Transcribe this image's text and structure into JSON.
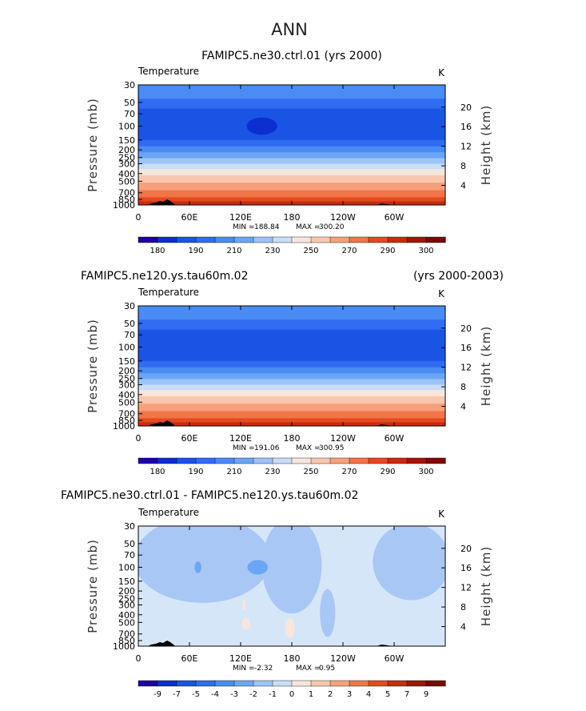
{
  "page_title": "ANN",
  "chart_data": [
    {
      "type": "heatmap",
      "title": "FAMIPC5.ne30.ctrl.01 (yrs 2000)",
      "variable": "Temperature",
      "units": "K",
      "xlabel": "",
      "ylabel": "Pressure (mb)",
      "y2label": "Height (km)",
      "xticks": [
        "0",
        "60E",
        "120E",
        "180",
        "120W",
        "60W"
      ],
      "xlim": [
        0,
        360
      ],
      "yticks": [
        "30",
        "50",
        "70",
        "100",
        "150",
        "200",
        "250",
        "300",
        "400",
        "500",
        "700",
        "850",
        "1000"
      ],
      "ylim_mb": [
        1000,
        30
      ],
      "height_ticks_km": [
        "4",
        "8",
        "12",
        "16",
        "20"
      ],
      "stats": {
        "min_label": "MIN =",
        "min": "188.84",
        "max_label": "MAX =",
        "max": "300.20"
      },
      "colorbar_labels": [
        "180",
        "190",
        "210",
        "230",
        "250",
        "270",
        "290",
        "300"
      ],
      "colorbar_colors": [
        "#1d00a6",
        "#0d2fcf",
        "#1a54e5",
        "#2f6cf1",
        "#4a8bf4",
        "#6ba6f6",
        "#9ec3f7",
        "#c9dcf8",
        "#f7e6dc",
        "#f8c7ad",
        "#f7a07b",
        "#f17548",
        "#e5491f",
        "#c92b10",
        "#a01606",
        "#7b0a02"
      ],
      "bands": [
        {
          "p_top": 30,
          "p_bot": 45,
          "color": "#4a8bf4"
        },
        {
          "p_top": 45,
          "p_bot": 60,
          "color": "#2f6cf1"
        },
        {
          "p_top": 60,
          "p_bot": 150,
          "color": "#1a54e5"
        },
        {
          "p_top": 150,
          "p_bot": 180,
          "color": "#2f6cf1"
        },
        {
          "p_top": 180,
          "p_bot": 215,
          "color": "#4a8bf4"
        },
        {
          "p_top": 215,
          "p_bot": 255,
          "color": "#6ba6f6"
        },
        {
          "p_top": 255,
          "p_bot": 300,
          "color": "#9ec3f7"
        },
        {
          "p_top": 300,
          "p_bot": 350,
          "color": "#c9dcf8"
        },
        {
          "p_top": 350,
          "p_bot": 420,
          "color": "#f7e6dc"
        },
        {
          "p_top": 420,
          "p_bot": 520,
          "color": "#f8c7ad"
        },
        {
          "p_top": 520,
          "p_bot": 650,
          "color": "#f7a07b"
        },
        {
          "p_top": 650,
          "p_bot": 800,
          "color": "#f17548"
        },
        {
          "p_top": 800,
          "p_bot": 900,
          "color": "#e5491f"
        },
        {
          "p_top": 900,
          "p_bot": 1000,
          "color": "#c92b10"
        }
      ],
      "blobs": [
        {
          "lon": 145,
          "p": 100,
          "rx_deg": 18,
          "ry_ratio": 0.018,
          "color": "#0d2fcf"
        }
      ]
    },
    {
      "type": "heatmap",
      "title": "FAMIPC5.ne120.ys.tau60m.02",
      "title_right": "(yrs 2000-2003)",
      "variable": "Temperature",
      "units": "K",
      "xlabel": "",
      "ylabel": "Pressure (mb)",
      "y2label": "Height (km)",
      "xticks": [
        "0",
        "60E",
        "120E",
        "180",
        "120W",
        "60W"
      ],
      "xlim": [
        0,
        360
      ],
      "yticks": [
        "30",
        "50",
        "70",
        "100",
        "150",
        "200",
        "250",
        "300",
        "400",
        "500",
        "700",
        "850",
        "1000"
      ],
      "ylim_mb": [
        1000,
        30
      ],
      "height_ticks_km": [
        "4",
        "8",
        "12",
        "16",
        "20"
      ],
      "stats": {
        "min_label": "MIN =",
        "min": "191.06",
        "max_label": "MAX =",
        "max": "300.95"
      },
      "colorbar_labels": [
        "180",
        "190",
        "210",
        "230",
        "250",
        "270",
        "290",
        "300"
      ],
      "colorbar_colors": [
        "#1d00a6",
        "#0d2fcf",
        "#1a54e5",
        "#2f6cf1",
        "#4a8bf4",
        "#6ba6f6",
        "#9ec3f7",
        "#c9dcf8",
        "#f7e6dc",
        "#f8c7ad",
        "#f7a07b",
        "#f17548",
        "#e5491f",
        "#c92b10",
        "#a01606",
        "#7b0a02"
      ],
      "bands": [
        {
          "p_top": 30,
          "p_bot": 45,
          "color": "#4a8bf4"
        },
        {
          "p_top": 45,
          "p_bot": 60,
          "color": "#2f6cf1"
        },
        {
          "p_top": 60,
          "p_bot": 150,
          "color": "#1a54e5"
        },
        {
          "p_top": 150,
          "p_bot": 180,
          "color": "#2f6cf1"
        },
        {
          "p_top": 180,
          "p_bot": 215,
          "color": "#4a8bf4"
        },
        {
          "p_top": 215,
          "p_bot": 255,
          "color": "#6ba6f6"
        },
        {
          "p_top": 255,
          "p_bot": 300,
          "color": "#9ec3f7"
        },
        {
          "p_top": 300,
          "p_bot": 350,
          "color": "#c9dcf8"
        },
        {
          "p_top": 350,
          "p_bot": 420,
          "color": "#f7e6dc"
        },
        {
          "p_top": 420,
          "p_bot": 520,
          "color": "#f8c7ad"
        },
        {
          "p_top": 520,
          "p_bot": 650,
          "color": "#f7a07b"
        },
        {
          "p_top": 650,
          "p_bot": 800,
          "color": "#f17548"
        },
        {
          "p_top": 800,
          "p_bot": 900,
          "color": "#e5491f"
        },
        {
          "p_top": 900,
          "p_bot": 1000,
          "color": "#c92b10"
        }
      ],
      "blobs": []
    },
    {
      "type": "heatmap",
      "title": "FAMIPC5.ne30.ctrl.01 - FAMIPC5.ne120.ys.tau60m.02",
      "variable": "Temperature",
      "units": "K",
      "xlabel": "",
      "ylabel": "Pressure (mb)",
      "y2label": "Height (km)",
      "xticks": [
        "0",
        "60E",
        "120E",
        "180",
        "120W",
        "60W"
      ],
      "xlim": [
        0,
        360
      ],
      "yticks": [
        "30",
        "50",
        "70",
        "100",
        "150",
        "200",
        "250",
        "300",
        "400",
        "500",
        "700",
        "850",
        "1000"
      ],
      "ylim_mb": [
        1000,
        30
      ],
      "height_ticks_km": [
        "4",
        "8",
        "12",
        "16",
        "20"
      ],
      "stats": {
        "min_label": "MIN =",
        "min": "-2.32",
        "max_label": "MAX =",
        "max": "0.95"
      },
      "colorbar_labels": [
        "-9",
        "-7",
        "-5",
        "-4",
        "-3",
        "-2",
        "-1",
        "0",
        "1",
        "2",
        "3",
        "4",
        "5",
        "7",
        "9"
      ],
      "colorbar_colors": [
        "#1d00a6",
        "#0d2fcf",
        "#1a54e5",
        "#2f6cf1",
        "#4a8bf4",
        "#6ba6f6",
        "#9ec3f7",
        "#c9dcf8",
        "#f7e6dc",
        "#f8c7ad",
        "#f7a07b",
        "#f17548",
        "#e5491f",
        "#c92b10",
        "#a01606",
        "#7b0a02"
      ],
      "background": "#d6e6f9",
      "bands": [],
      "blobs": [
        {
          "lon": 75,
          "p": 80,
          "rx_deg": 80,
          "ry_ratio": 0.09,
          "color": "#a9c7f5"
        },
        {
          "lon": 180,
          "p": 95,
          "rx_deg": 35,
          "ry_ratio": 0.1,
          "color": "#a9c7f5"
        },
        {
          "lon": 320,
          "p": 85,
          "rx_deg": 45,
          "ry_ratio": 0.08,
          "color": "#a9c7f5"
        },
        {
          "lon": 140,
          "p": 100,
          "rx_deg": 12,
          "ry_ratio": 0.015,
          "color": "#6ba6f6"
        },
        {
          "lon": 70,
          "p": 100,
          "rx_deg": 4,
          "ry_ratio": 0.012,
          "color": "#6ba6f6"
        },
        {
          "lon": 222,
          "p": 380,
          "rx_deg": 9,
          "ry_ratio": 0.05,
          "color": "#a9c7f5"
        },
        {
          "lon": 178,
          "p": 590,
          "rx_deg": 6,
          "ry_ratio": 0.02,
          "color": "#f7e6dc"
        },
        {
          "lon": 126,
          "p": 520,
          "rx_deg": 5,
          "ry_ratio": 0.012,
          "color": "#f7e6dc"
        },
        {
          "lon": 124,
          "p": 300,
          "rx_deg": 2,
          "ry_ratio": 0.012,
          "color": "#f7e6dc"
        }
      ]
    }
  ]
}
